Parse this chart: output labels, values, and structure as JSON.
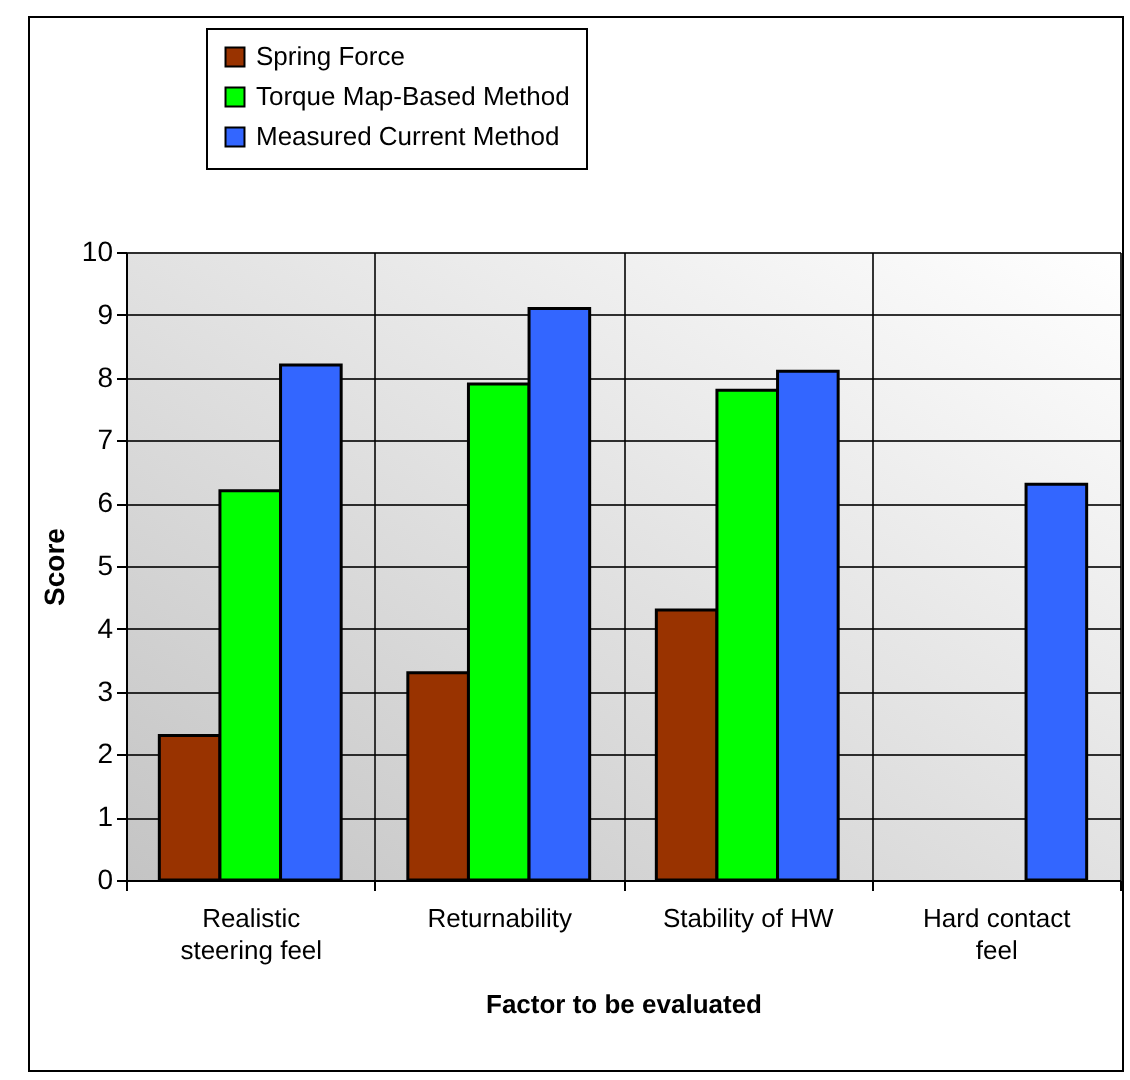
{
  "chart_data": {
    "type": "bar",
    "xlabel": "Factor to be evaluated",
    "ylabel": "Score",
    "categories": [
      "Realistic steering feel",
      "Returnability",
      "Stability of HW",
      "Hard contact feel"
    ],
    "series": [
      {
        "name": "Spring Force",
        "color": "#993300",
        "values": [
          2.3,
          3.3,
          4.3,
          null
        ]
      },
      {
        "name": "Torque Map-Based Method",
        "color": "#00ff00",
        "values": [
          6.2,
          7.9,
          7.8,
          null
        ]
      },
      {
        "name": "Measured Current Method",
        "color": "#3366ff",
        "values": [
          8.2,
          9.1,
          8.1,
          6.3
        ]
      }
    ],
    "ylim": [
      0,
      10
    ],
    "yticks": [
      0,
      1,
      2,
      3,
      4,
      5,
      6,
      7,
      8,
      9,
      10
    ],
    "grid": true,
    "legend": "top"
  }
}
